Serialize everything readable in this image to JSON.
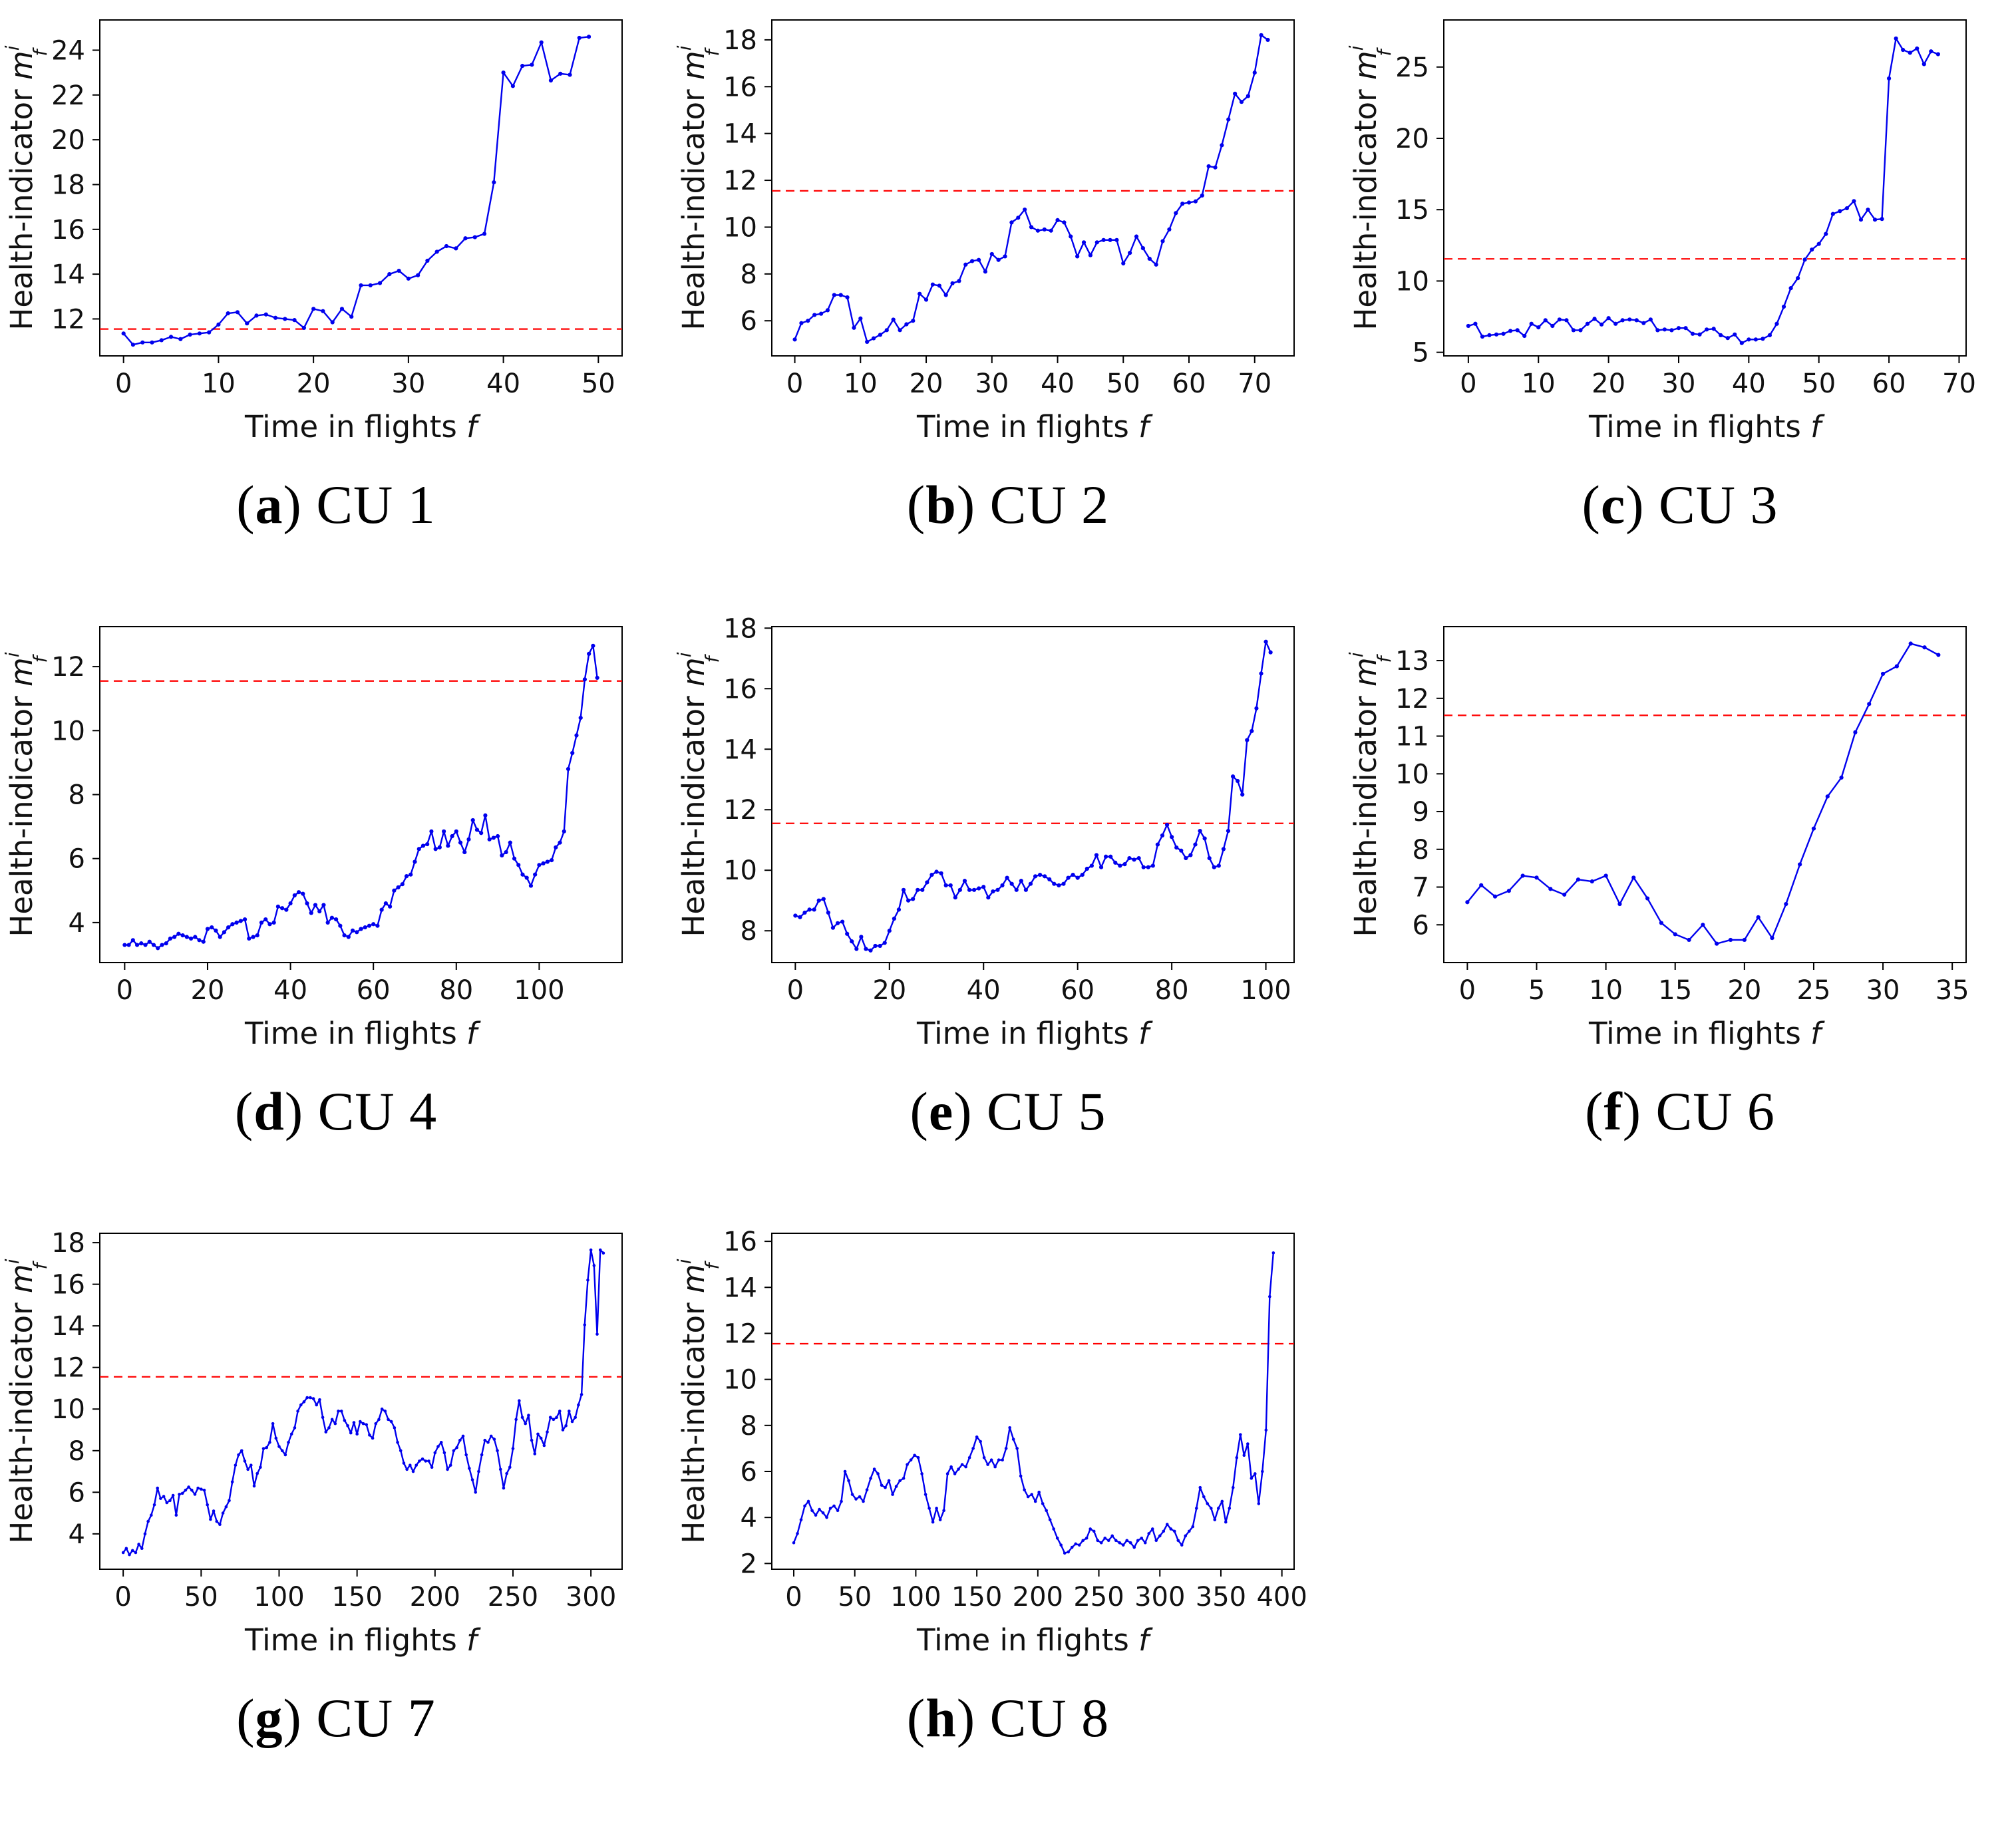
{
  "figure": {
    "background_color": "#ffffff",
    "line_color": "#0000ee",
    "marker_color": "#0000ee",
    "threshold_color": "#ff0000",
    "axis_color": "#000000",
    "threshold_value": 11.55,
    "xlabel": {
      "prefix": "Time in flights ",
      "symbol": "f"
    },
    "ylabel": {
      "prefix": "Health-indicator ",
      "symbol": "m",
      "sup": "i",
      "sub": "f"
    },
    "grid": false,
    "legend": "none"
  },
  "chart_data": [
    {
      "id": "a",
      "type": "line",
      "caption_letter": "a",
      "caption_label": "CU 1",
      "xlabel": "Time in flights f",
      "ylabel": "Health-indicator m_f^i",
      "threshold": 11.55,
      "xlim": [
        -2.5,
        52.5
      ],
      "ylim": [
        10.35,
        25.35
      ],
      "xticks": [
        0,
        10,
        20,
        30,
        40,
        50
      ],
      "yticks": [
        12,
        14,
        16,
        18,
        20,
        22,
        24
      ],
      "x_start": 0,
      "x_step": 1,
      "y": [
        11.35,
        10.85,
        10.95,
        10.95,
        11.05,
        11.2,
        11.1,
        11.3,
        11.35,
        11.4,
        11.75,
        12.25,
        12.3,
        11.8,
        12.15,
        12.2,
        12.05,
        12.0,
        11.95,
        11.6,
        12.45,
        12.35,
        11.85,
        12.45,
        12.1,
        13.5,
        13.5,
        13.6,
        14.0,
        14.15,
        13.8,
        13.95,
        14.6,
        15.0,
        15.25,
        15.15,
        15.6,
        15.65,
        15.8,
        18.1,
        23.0,
        22.4,
        23.3,
        23.35,
        24.35,
        22.65,
        22.95,
        22.9,
        24.55,
        24.6
      ]
    },
    {
      "id": "b",
      "type": "line",
      "caption_letter": "b",
      "caption_label": "CU 2",
      "xlabel": "Time in flights f",
      "ylabel": "Health-indicator m_f^i",
      "threshold": 11.55,
      "xlim": [
        -3.5,
        76
      ],
      "ylim": [
        4.5,
        18.85
      ],
      "xticks": [
        0,
        10,
        20,
        30,
        40,
        50,
        60,
        70
      ],
      "yticks": [
        6,
        8,
        10,
        12,
        14,
        16,
        18
      ],
      "x_start": 0,
      "x_step": 1,
      "y": [
        5.2,
        5.9,
        6.0,
        6.25,
        6.3,
        6.45,
        7.1,
        7.1,
        7.0,
        5.7,
        6.1,
        5.1,
        5.25,
        5.4,
        5.6,
        6.05,
        5.6,
        5.85,
        6.0,
        7.15,
        6.9,
        7.55,
        7.5,
        7.1,
        7.6,
        7.7,
        8.4,
        8.55,
        8.6,
        8.1,
        8.85,
        8.6,
        8.75,
        10.2,
        10.4,
        10.75,
        10.0,
        9.85,
        9.9,
        9.85,
        10.3,
        10.2,
        9.6,
        8.75,
        9.35,
        8.8,
        9.35,
        9.45,
        9.45,
        9.45,
        8.45,
        8.9,
        9.6,
        9.1,
        8.65,
        8.4,
        9.4,
        9.9,
        10.6,
        11.0,
        11.05,
        11.1,
        11.35,
        12.6,
        12.55,
        13.5,
        14.6,
        15.7,
        15.35,
        15.6,
        16.6,
        18.2,
        18.0
      ]
    },
    {
      "id": "c",
      "type": "line",
      "caption_letter": "c",
      "caption_label": "CU 3",
      "xlabel": "Time in flights f",
      "ylabel": "Health-indicator m_f^i",
      "threshold": 11.55,
      "xlim": [
        -3.5,
        71
      ],
      "ylim": [
        4.75,
        28.3
      ],
      "xticks": [
        0,
        10,
        20,
        30,
        40,
        50,
        60,
        70
      ],
      "yticks": [
        5,
        10,
        15,
        20,
        25
      ],
      "x_start": 0,
      "x_step": 1,
      "y": [
        6.85,
        7.0,
        6.1,
        6.2,
        6.25,
        6.3,
        6.5,
        6.55,
        6.15,
        7.0,
        6.75,
        7.25,
        6.85,
        7.3,
        7.25,
        6.55,
        6.55,
        7.0,
        7.35,
        6.95,
        7.4,
        7.0,
        7.25,
        7.3,
        7.25,
        7.05,
        7.3,
        6.55,
        6.6,
        6.55,
        6.7,
        6.7,
        6.3,
        6.25,
        6.6,
        6.65,
        6.2,
        6.0,
        6.25,
        5.65,
        5.9,
        5.9,
        5.95,
        6.2,
        7.0,
        8.2,
        9.5,
        10.2,
        11.5,
        12.2,
        12.6,
        13.3,
        14.7,
        14.9,
        15.1,
        15.6,
        14.3,
        15.0,
        14.3,
        14.35,
        24.2,
        27.0,
        26.2,
        26.0,
        26.3,
        25.2,
        26.1,
        25.9
      ]
    },
    {
      "id": "d",
      "type": "line",
      "caption_letter": "d",
      "caption_label": "CU 4",
      "xlabel": "Time in flights f",
      "ylabel": "Health-indicator m_f^i",
      "threshold": 11.55,
      "xlim": [
        -6,
        120
      ],
      "ylim": [
        2.75,
        13.25
      ],
      "xticks": [
        0,
        20,
        40,
        60,
        80,
        100
      ],
      "yticks": [
        4,
        6,
        8,
        10,
        12
      ],
      "x_start": 0,
      "x_step": 1,
      "y": [
        3.3,
        3.3,
        3.45,
        3.3,
        3.35,
        3.3,
        3.4,
        3.3,
        3.2,
        3.3,
        3.35,
        3.5,
        3.55,
        3.65,
        3.6,
        3.55,
        3.5,
        3.55,
        3.45,
        3.4,
        3.8,
        3.85,
        3.75,
        3.55,
        3.7,
        3.85,
        3.95,
        4.0,
        4.05,
        4.1,
        3.5,
        3.55,
        3.6,
        4.0,
        4.1,
        3.95,
        4.0,
        4.5,
        4.45,
        4.4,
        4.6,
        4.85,
        4.95,
        4.9,
        4.6,
        4.3,
        4.55,
        4.35,
        4.55,
        4.0,
        4.15,
        4.1,
        3.9,
        3.6,
        3.55,
        3.75,
        3.7,
        3.8,
        3.85,
        3.9,
        3.95,
        3.9,
        4.4,
        4.6,
        4.5,
        5.0,
        5.1,
        5.2,
        5.45,
        5.5,
        5.9,
        6.3,
        6.4,
        6.45,
        6.85,
        6.3,
        6.35,
        6.85,
        6.4,
        6.7,
        6.85,
        6.5,
        6.2,
        6.6,
        7.2,
        6.9,
        6.8,
        7.35,
        6.6,
        6.65,
        6.7,
        6.1,
        6.2,
        6.5,
        6.0,
        5.8,
        5.5,
        5.4,
        5.15,
        5.5,
        5.8,
        5.85,
        5.9,
        5.95,
        6.35,
        6.5,
        6.85,
        8.8,
        9.3,
        9.85,
        10.4,
        11.6,
        12.4,
        12.65,
        11.65
      ]
    },
    {
      "id": "e",
      "type": "line",
      "caption_letter": "e",
      "caption_label": "CU 5",
      "xlabel": "Time in flights f",
      "ylabel": "Health-indicator m_f^i",
      "threshold": 11.55,
      "xlim": [
        -5,
        106
      ],
      "ylim": [
        6.95,
        18.05
      ],
      "xticks": [
        0,
        20,
        40,
        60,
        80,
        100
      ],
      "yticks": [
        8,
        10,
        12,
        14,
        16,
        18
      ],
      "x_start": 0,
      "x_step": 1,
      "y": [
        8.5,
        8.45,
        8.6,
        8.7,
        8.7,
        9.0,
        9.05,
        8.6,
        8.1,
        8.25,
        8.3,
        7.9,
        7.65,
        7.4,
        7.8,
        7.4,
        7.35,
        7.5,
        7.5,
        7.6,
        8.0,
        8.4,
        8.7,
        9.35,
        9.0,
        9.05,
        9.35,
        9.35,
        9.6,
        9.85,
        9.95,
        9.9,
        9.5,
        9.5,
        9.1,
        9.35,
        9.65,
        9.35,
        9.35,
        9.4,
        9.45,
        9.1,
        9.3,
        9.35,
        9.5,
        9.75,
        9.55,
        9.35,
        9.65,
        9.35,
        9.55,
        9.8,
        9.85,
        9.8,
        9.7,
        9.55,
        9.5,
        9.55,
        9.75,
        9.85,
        9.75,
        9.85,
        10.05,
        10.15,
        10.5,
        10.1,
        10.45,
        10.45,
        10.25,
        10.15,
        10.2,
        10.4,
        10.35,
        10.4,
        10.1,
        10.1,
        10.15,
        10.85,
        11.15,
        11.5,
        11.1,
        10.75,
        10.65,
        10.4,
        10.5,
        10.85,
        11.3,
        11.05,
        10.4,
        10.1,
        10.15,
        10.7,
        11.3,
        13.1,
        12.95,
        12.5,
        14.3,
        14.6,
        15.35,
        16.5,
        17.55,
        17.2
      ]
    },
    {
      "id": "f",
      "type": "line",
      "caption_letter": "f",
      "caption_label": "CU 6",
      "xlabel": "Time in flights f",
      "ylabel": "Health-indicator m_f^i",
      "threshold": 11.55,
      "xlim": [
        -1.7,
        36
      ],
      "ylim": [
        5.0,
        13.9
      ],
      "xticks": [
        0,
        5,
        10,
        15,
        20,
        25,
        30,
        35
      ],
      "yticks": [
        6,
        7,
        8,
        9,
        10,
        11,
        12,
        13
      ],
      "x_start": 0,
      "x_step": 1,
      "y": [
        6.6,
        7.05,
        6.75,
        6.9,
        7.3,
        7.25,
        6.95,
        6.8,
        7.2,
        7.15,
        7.3,
        6.55,
        7.25,
        6.7,
        6.05,
        5.75,
        5.6,
        6.0,
        5.5,
        5.6,
        5.6,
        6.2,
        5.65,
        6.55,
        7.6,
        8.55,
        9.4,
        9.9,
        11.1,
        11.85,
        12.65,
        12.85,
        13.45,
        13.35,
        13.15
      ]
    },
    {
      "id": "g",
      "type": "line",
      "caption_letter": "g",
      "caption_label": "CU 7",
      "xlabel": "Time in flights f",
      "ylabel": "Health-indicator m_f^i",
      "threshold": 11.55,
      "xlim": [
        -15,
        320
      ],
      "ylim": [
        2.3,
        18.45
      ],
      "xticks": [
        0,
        50,
        100,
        150,
        200,
        250,
        300
      ],
      "yticks": [
        4,
        6,
        8,
        10,
        12,
        14,
        16,
        18
      ],
      "x_start": 0,
      "x_step": 2,
      "y": [
        3.1,
        3.3,
        3.0,
        3.2,
        3.1,
        3.5,
        3.3,
        4.0,
        4.6,
        4.9,
        5.4,
        6.2,
        5.7,
        5.8,
        5.5,
        5.6,
        5.85,
        4.9,
        5.9,
        5.95,
        6.1,
        6.25,
        6.1,
        5.9,
        6.2,
        6.15,
        6.1,
        5.4,
        4.7,
        5.1,
        4.6,
        4.45,
        5.0,
        5.3,
        5.6,
        6.5,
        7.3,
        7.8,
        8.0,
        7.5,
        7.1,
        7.3,
        6.3,
        6.9,
        7.2,
        8.1,
        8.15,
        8.4,
        9.3,
        8.6,
        8.2,
        8.0,
        7.8,
        8.4,
        8.8,
        9.1,
        9.9,
        10.2,
        10.35,
        10.55,
        10.55,
        10.5,
        10.2,
        10.45,
        9.6,
        8.9,
        9.1,
        9.5,
        9.3,
        9.9,
        9.9,
        9.45,
        9.2,
        8.85,
        9.35,
        8.8,
        9.4,
        9.3,
        9.25,
        8.75,
        8.6,
        9.3,
        9.5,
        10.0,
        9.9,
        9.5,
        9.4,
        9.1,
        8.4,
        8.0,
        7.4,
        7.1,
        7.3,
        7.0,
        7.3,
        7.5,
        7.6,
        7.5,
        7.5,
        7.2,
        7.9,
        8.2,
        8.4,
        7.9,
        7.1,
        7.3,
        8.0,
        8.15,
        8.5,
        8.7,
        7.8,
        7.15,
        6.6,
        6.0,
        7.0,
        7.8,
        8.5,
        8.4,
        8.7,
        8.55,
        8.0,
        7.1,
        6.2,
        6.9,
        7.2,
        8.1,
        9.5,
        10.4,
        9.6,
        9.3,
        9.7,
        8.5,
        7.85,
        8.8,
        8.6,
        8.25,
        8.9,
        9.6,
        9.5,
        9.6,
        9.9,
        9.0,
        9.2,
        9.9,
        9.4,
        9.6,
        10.2,
        10.7,
        14.05,
        16.2,
        17.65,
        16.9,
        13.6,
        17.65,
        17.5
      ]
    },
    {
      "id": "h",
      "type": "line",
      "caption_letter": "h",
      "caption_label": "CU 8",
      "xlabel": "Time in flights f",
      "ylabel": "Health-indicator m_f^i",
      "threshold": 11.55,
      "xlim": [
        -18,
        410
      ],
      "ylim": [
        1.75,
        16.35
      ],
      "xticks": [
        0,
        50,
        100,
        150,
        200,
        250,
        300,
        350,
        400
      ],
      "yticks": [
        2,
        4,
        6,
        8,
        10,
        12,
        14,
        16
      ],
      "x_start": 0,
      "x_step": 3,
      "y": [
        2.9,
        3.3,
        3.9,
        4.5,
        4.7,
        4.3,
        4.1,
        4.35,
        4.2,
        4.0,
        4.4,
        4.5,
        4.3,
        4.7,
        6.0,
        5.6,
        5.0,
        4.8,
        4.9,
        4.7,
        5.2,
        5.7,
        6.1,
        5.9,
        5.4,
        5.3,
        5.6,
        5.0,
        5.35,
        5.6,
        5.7,
        6.3,
        6.5,
        6.7,
        6.6,
        5.9,
        5.0,
        4.4,
        3.8,
        4.4,
        3.9,
        4.3,
        5.9,
        6.2,
        5.9,
        6.1,
        6.3,
        6.2,
        6.6,
        7.0,
        7.5,
        7.3,
        6.6,
        6.3,
        6.5,
        6.2,
        6.5,
        6.5,
        7.0,
        7.9,
        7.4,
        7.0,
        5.8,
        5.2,
        4.9,
        5.0,
        4.7,
        5.1,
        4.6,
        4.3,
        3.9,
        3.5,
        3.1,
        2.8,
        2.45,
        2.5,
        2.7,
        2.85,
        2.8,
        3.0,
        3.1,
        3.5,
        3.4,
        3.0,
        2.9,
        3.1,
        3.0,
        3.2,
        3.0,
        2.9,
        2.8,
        3.0,
        2.9,
        2.7,
        3.0,
        3.1,
        2.9,
        3.3,
        3.5,
        3.0,
        3.2,
        3.4,
        3.7,
        3.5,
        3.4,
        3.0,
        2.8,
        3.2,
        3.4,
        3.6,
        4.4,
        5.3,
        4.9,
        4.6,
        4.4,
        3.9,
        4.4,
        4.7,
        3.8,
        4.4,
        5.3,
        6.6,
        7.6,
        6.7,
        7.2,
        5.7,
        5.9,
        4.6,
        6.0,
        7.8,
        13.6,
        15.5
      ]
    }
  ]
}
